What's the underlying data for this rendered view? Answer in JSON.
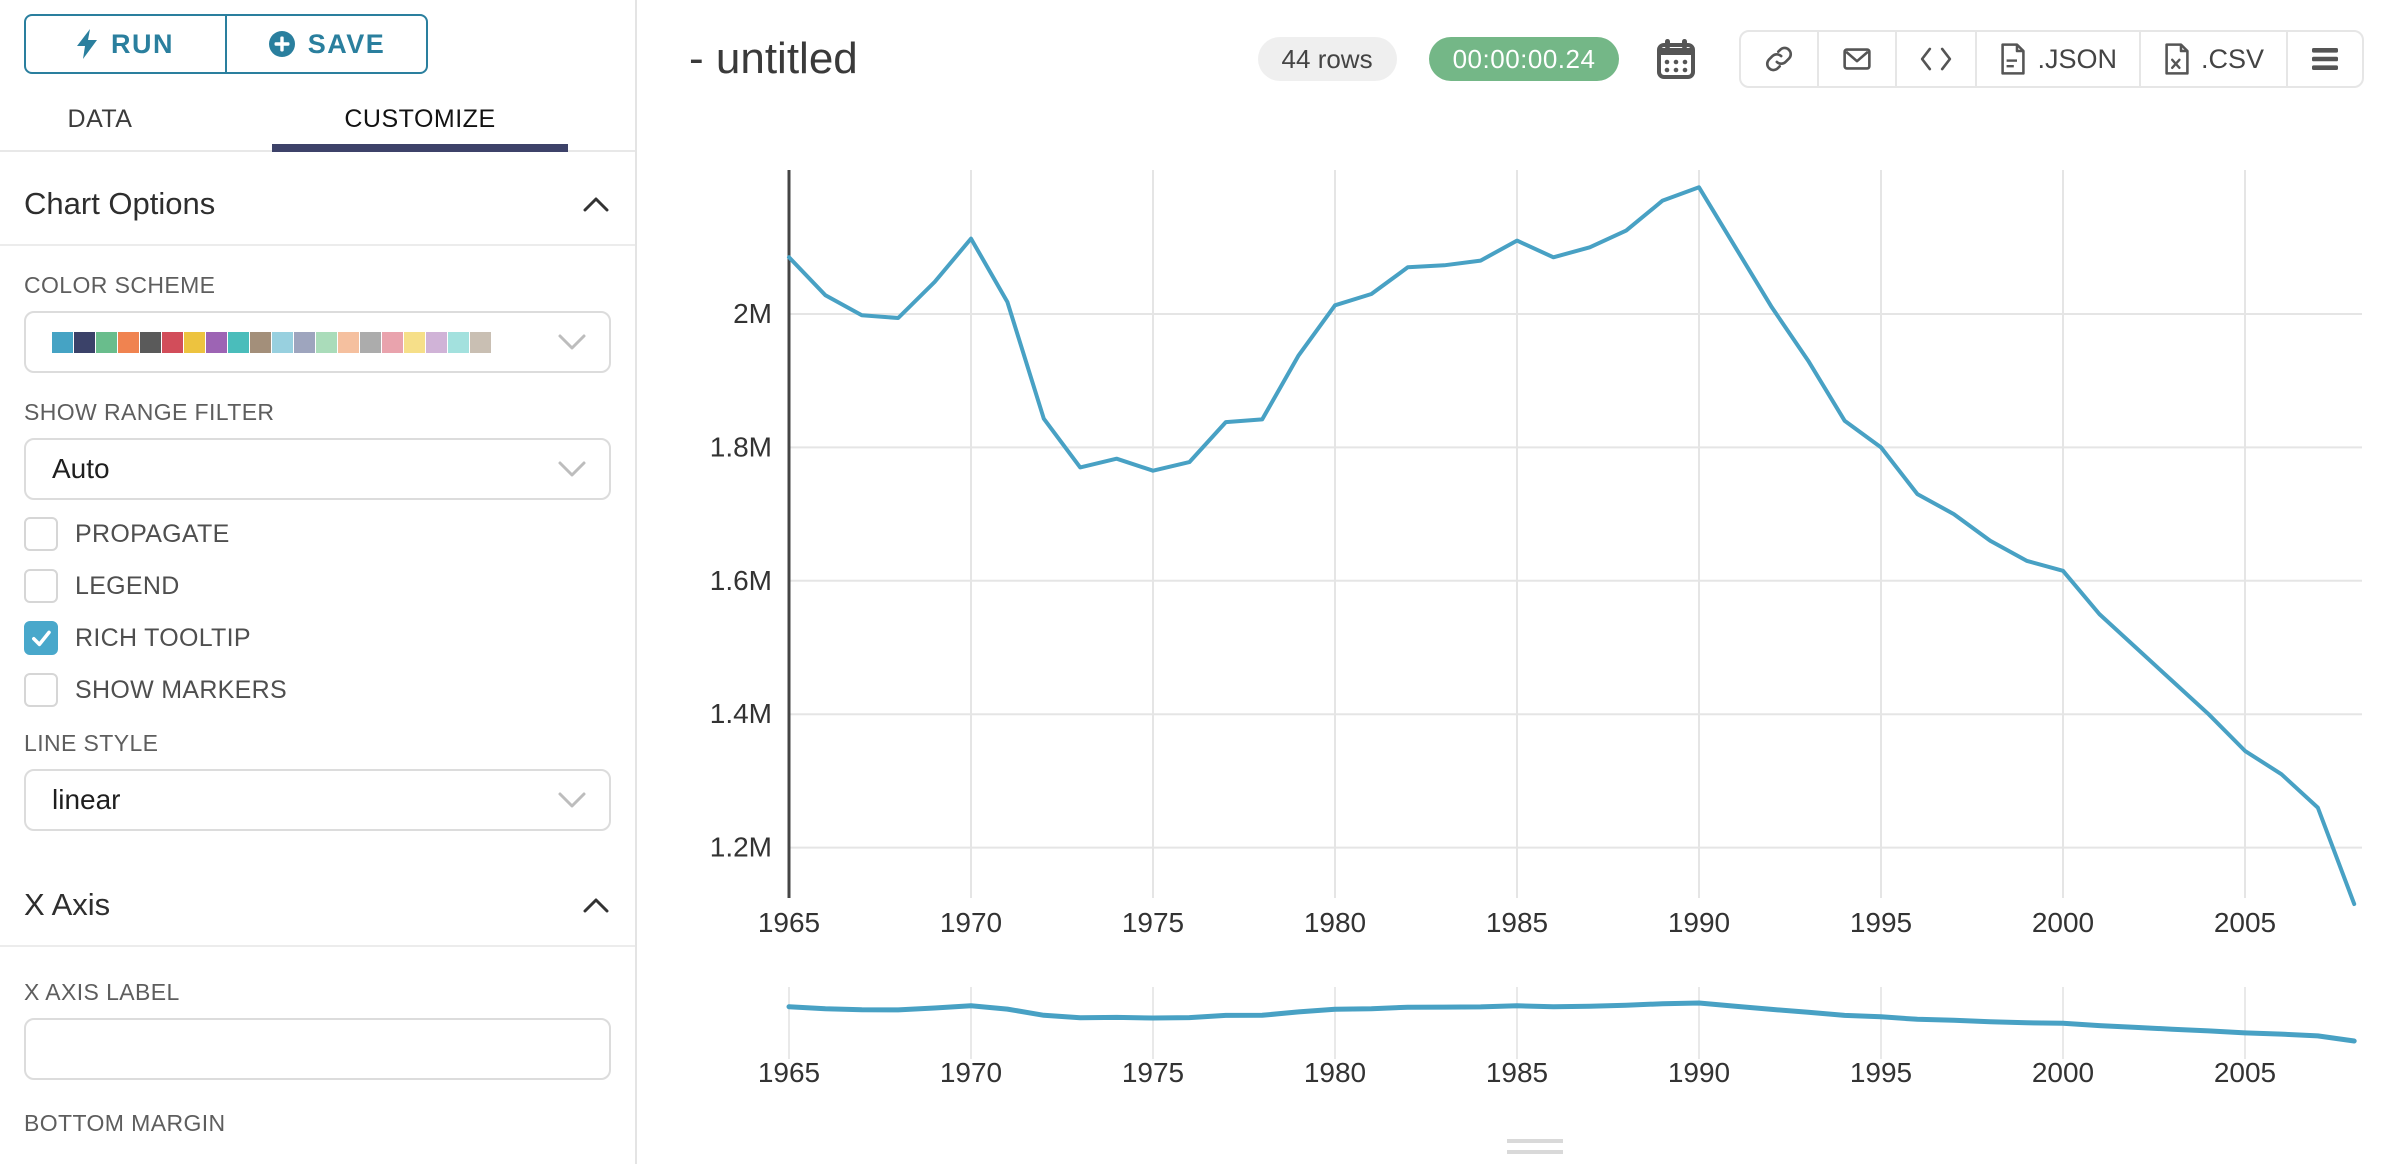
{
  "sidebar": {
    "run_label": "RUN",
    "save_label": "SAVE",
    "tabs": {
      "data": "DATA",
      "customize": "CUSTOMIZE"
    },
    "chart_options_title": "Chart Options",
    "color_scheme": {
      "label": "COLOR SCHEME",
      "swatches": [
        "#45A3C4",
        "#3B4269",
        "#69BD8C",
        "#F08350",
        "#5A5A5A",
        "#D24D5A",
        "#EDC33F",
        "#9D64B4",
        "#4ABDBB",
        "#A38F7A",
        "#98D0DF",
        "#9EA5BE",
        "#AADCBA",
        "#F5C09F",
        "#ACACAC",
        "#E9A3AD",
        "#F6DF89",
        "#D0B3D7",
        "#A3E1DE",
        "#C9BFB3"
      ]
    },
    "range_filter": {
      "label": "SHOW RANGE FILTER",
      "value": "Auto"
    },
    "checkboxes": [
      {
        "label": "PROPAGATE",
        "checked": false
      },
      {
        "label": "LEGEND",
        "checked": false
      },
      {
        "label": "RICH TOOLTIP",
        "checked": true
      },
      {
        "label": "SHOW MARKERS",
        "checked": false
      }
    ],
    "line_style": {
      "label": "LINE STYLE",
      "value": "linear"
    },
    "x_axis_title": "X Axis",
    "x_axis_label": {
      "label": "X AXIS LABEL",
      "value": ""
    },
    "bottom_margin_label": "BOTTOM MARGIN"
  },
  "header": {
    "title": "- untitled",
    "rows_badge": "44 rows",
    "timer": "00:00:00.24",
    "export_json_label": ".JSON",
    "export_csv_label": ".CSV"
  },
  "colors": {
    "primary_teal": "#2A7F9E",
    "tab_underline": "#3D4269",
    "timer_green": "#74B787",
    "checkbox_checked": "#49A8CB",
    "line_blue": "#48A1C4",
    "gridline": "#e5e5e5",
    "axis": "#454545"
  },
  "chart_data": {
    "type": "line",
    "title": "- untitled",
    "xlabel": "",
    "ylabel": "",
    "legend": false,
    "grid": true,
    "range_filter": true,
    "x": [
      1965,
      1966,
      1967,
      1968,
      1969,
      1970,
      1971,
      1972,
      1973,
      1974,
      1975,
      1976,
      1977,
      1978,
      1979,
      1980,
      1981,
      1982,
      1983,
      1984,
      1985,
      1986,
      1987,
      1988,
      1989,
      1990,
      1991,
      1992,
      1993,
      1994,
      1995,
      1996,
      1997,
      1998,
      1999,
      2000,
      2001,
      2002,
      2003,
      2004,
      2005,
      2006,
      2007,
      2008
    ],
    "values": [
      2.085,
      2.028,
      1.998,
      1.994,
      2.048,
      2.113,
      2.018,
      1.843,
      1.77,
      1.783,
      1.765,
      1.778,
      1.838,
      1.842,
      1.938,
      2.013,
      2.03,
      2.07,
      2.073,
      2.08,
      2.11,
      2.085,
      2.1,
      2.125,
      2.17,
      2.19,
      2.1,
      2.01,
      1.93,
      1.84,
      1.8,
      1.73,
      1.7,
      1.66,
      1.63,
      1.615,
      1.55,
      1.5,
      1.45,
      1.4,
      1.345,
      1.31,
      1.26,
      1.115
    ],
    "value_unit": "M",
    "x_ticks": [
      1965,
      1970,
      1975,
      1980,
      1985,
      1990,
      1995,
      2000,
      2005
    ],
    "y_ticks": [
      {
        "label": "2M",
        "value": 2.0
      },
      {
        "label": "1.8M",
        "value": 1.8
      },
      {
        "label": "1.6M",
        "value": 1.6
      },
      {
        "label": "1.4M",
        "value": 1.4
      },
      {
        "label": "1.2M",
        "value": 1.2
      }
    ],
    "ylim": [
      1.115,
      2.22
    ],
    "line_color": "#48A1C4"
  }
}
